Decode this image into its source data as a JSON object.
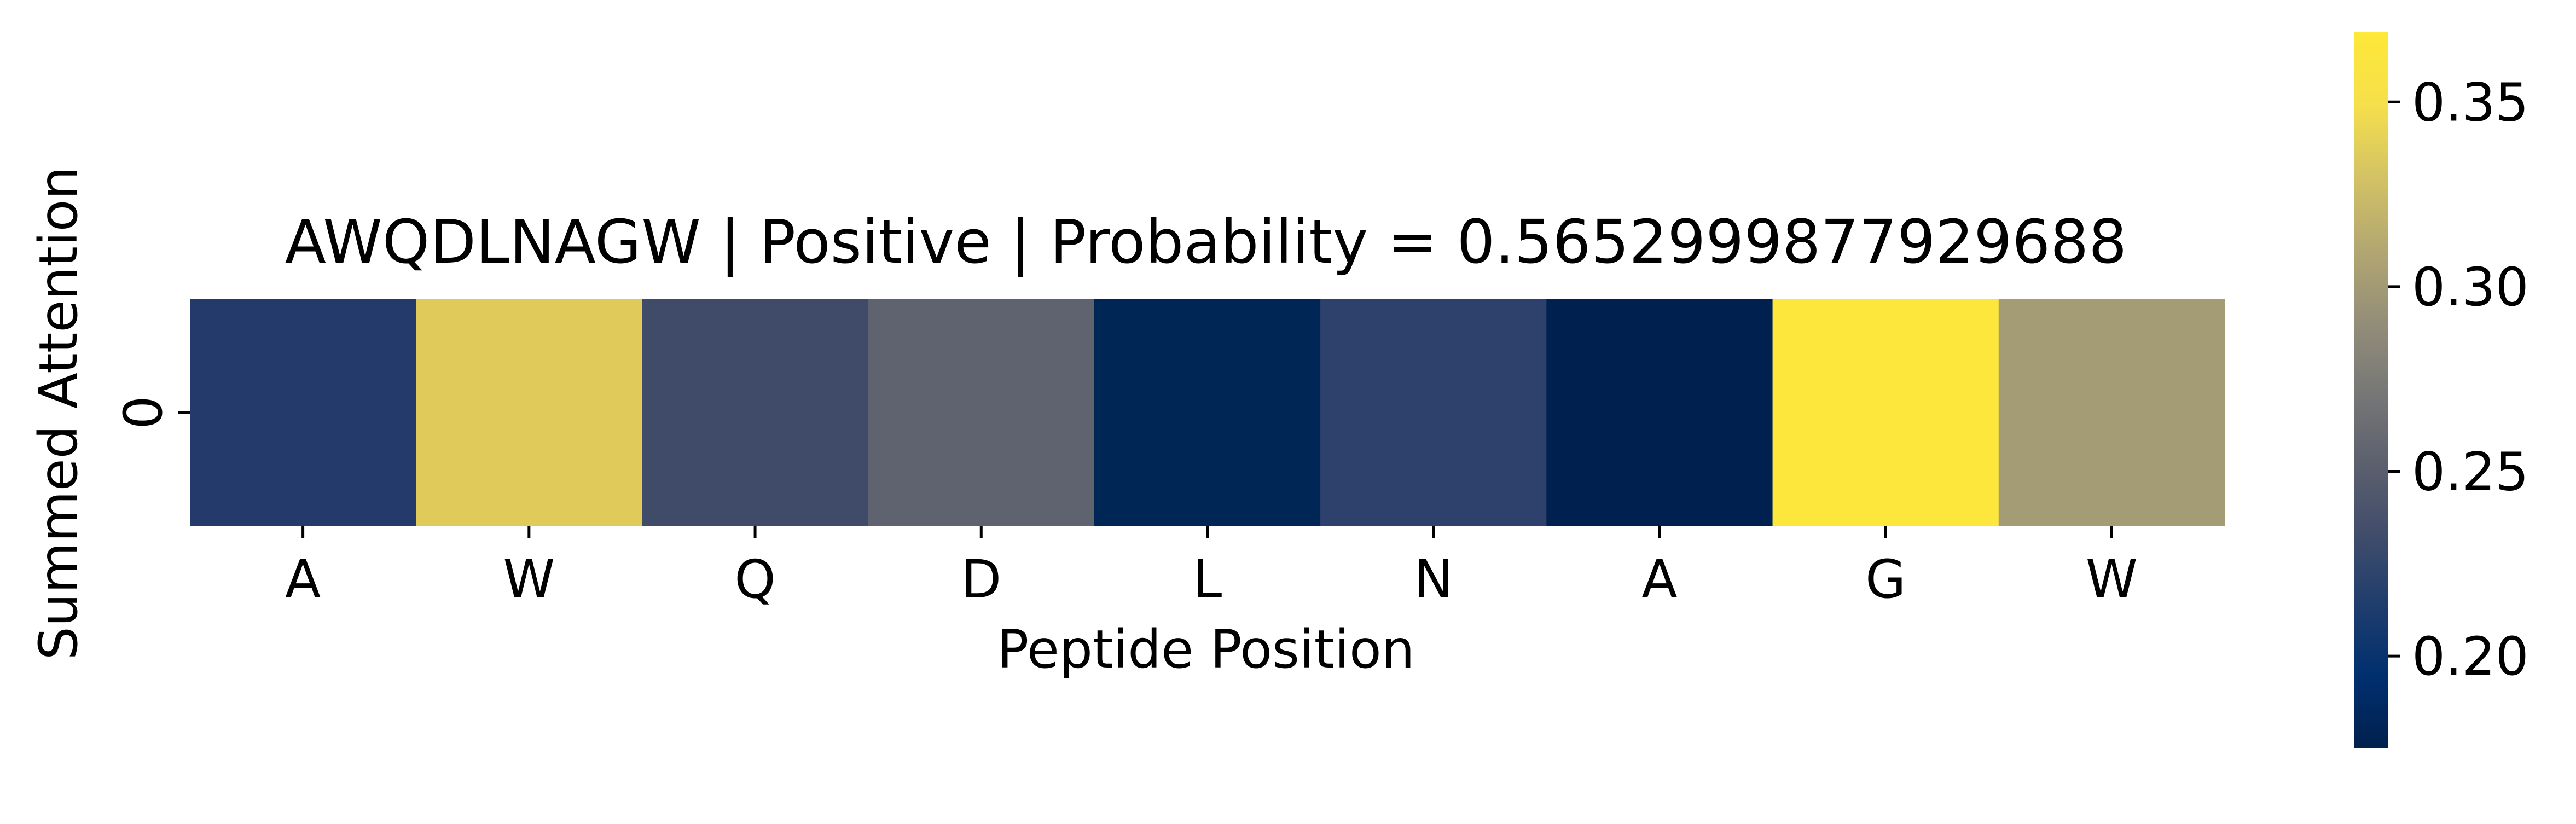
{
  "chart_data": {
    "type": "heatmap",
    "title": "AWQDLNAGW | Positive | Probability = 0.5652999877929688",
    "xlabel": "Peptide Position",
    "ylabel": "Summed Attention",
    "x_categories": [
      "A",
      "W",
      "Q",
      "D",
      "L",
      "N",
      "A",
      "G",
      "W"
    ],
    "y_categories": [
      "0"
    ],
    "values": [
      [
        0.201,
        0.339,
        0.225,
        0.254,
        0.185,
        0.213,
        0.176,
        0.369,
        0.306
      ]
    ],
    "colormap": "cividis",
    "colorbar": {
      "vmin": 0.175,
      "vmax": 0.369,
      "ticks": [
        0.2,
        0.25,
        0.3,
        0.35
      ],
      "tick_labels": [
        "0.20",
        "0.25",
        "0.30",
        "0.35"
      ]
    },
    "cell_colors": [
      "#233a6b",
      "#dfca5a",
      "#3f4b69",
      "#5f636f",
      "#002656",
      "#2e416c",
      "#002150",
      "#fde73d",
      "#a49c74"
    ],
    "colorbar_gradient": [
      "#00204d",
      "#002f6f",
      "#1f3d6d",
      "#414d6b",
      "#5d616e",
      "#787877",
      "#958f78",
      "#b4a871",
      "#d4c364",
      "#f6e04b",
      "#fee838"
    ]
  }
}
